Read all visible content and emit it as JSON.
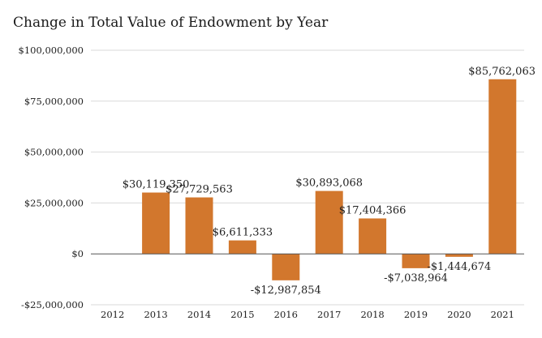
{
  "chart_data": {
    "type": "bar",
    "title": "Change in Total Value of Endowment by Year",
    "xlabel": "",
    "ylabel": "",
    "categories": [
      "2012",
      "2013",
      "2014",
      "2015",
      "2016",
      "2017",
      "2018",
      "2019",
      "2020",
      "2021"
    ],
    "values": [
      0,
      30119350,
      27729563,
      6611333,
      -12987854,
      30893068,
      17404366,
      -7038964,
      -1444674,
      85762063
    ],
    "data_labels": [
      "",
      "$30,119,350",
      "$27,729,563",
      "$6,611,333",
      "-$12,987,854",
      "$30,893,068",
      "$17,404,366",
      "-$7,038,964",
      "-$1,444,674",
      "$85,762,063"
    ],
    "ylim": [
      -25000000,
      100000000
    ],
    "yticks": [
      100000000,
      75000000,
      50000000,
      25000000,
      0,
      -25000000
    ],
    "ytick_labels": [
      "$100,000,000",
      "$75,000,000",
      "$50,000,000",
      "$25,000,000",
      "$0",
      "-$25,000,000"
    ],
    "grid": true,
    "legend": "none",
    "bar_color": "#d2772d",
    "grid_color": "#d9d9d9",
    "zero_line_color": "#555555"
  }
}
